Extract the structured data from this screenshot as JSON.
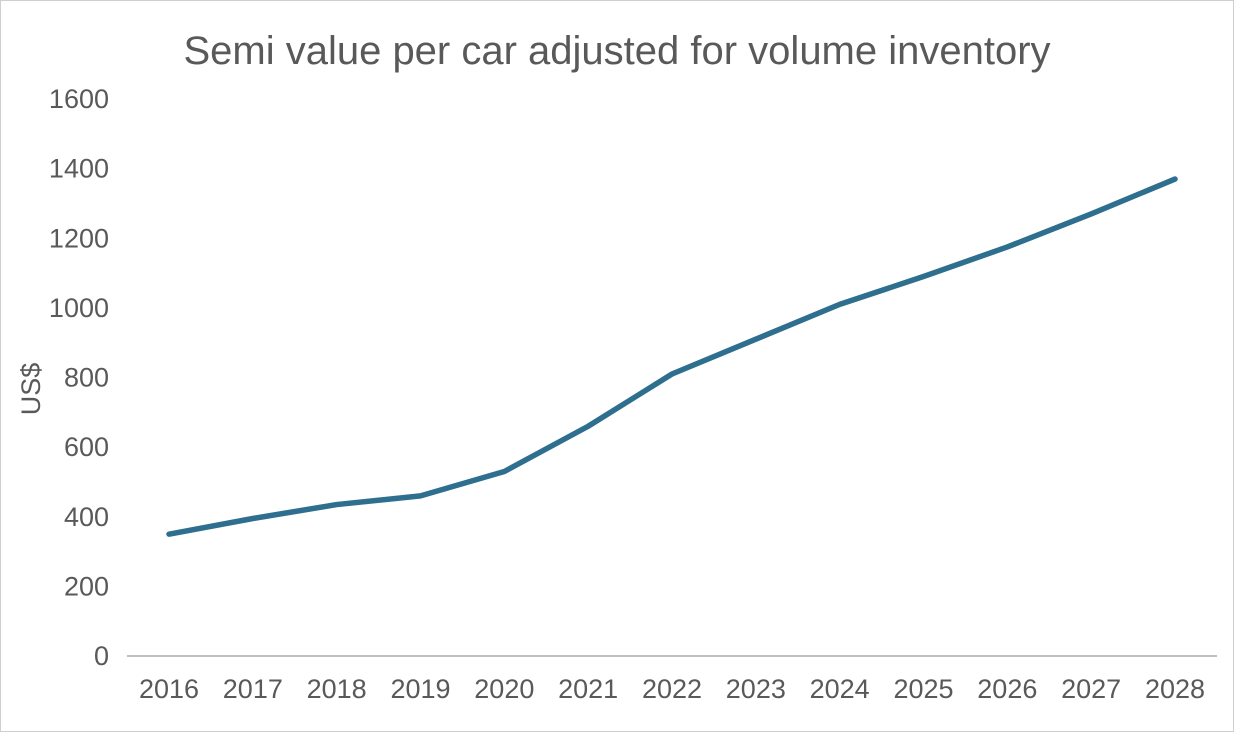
{
  "chart": {
    "title": "Semi value per car adjusted for volume inventory",
    "ylabel": "US$"
  },
  "chart_data": {
    "type": "line",
    "title": "Semi value per car adjusted for volume inventory",
    "xlabel": "",
    "ylabel": "US$",
    "categories": [
      "2016",
      "2017",
      "2018",
      "2019",
      "2020",
      "2021",
      "2022",
      "2023",
      "2024",
      "2025",
      "2026",
      "2027",
      "2028"
    ],
    "values": [
      350,
      395,
      435,
      460,
      530,
      660,
      810,
      910,
      1010,
      1090,
      1175,
      1270,
      1370
    ],
    "ylim": [
      0,
      1600
    ],
    "y_ticks": [
      0,
      200,
      400,
      600,
      800,
      1000,
      1200,
      1400,
      1600
    ],
    "grid": false,
    "legend": false,
    "line_color": "#2e6e8e",
    "axis_color": "#bfbfbf",
    "text_color": "#595959"
  }
}
